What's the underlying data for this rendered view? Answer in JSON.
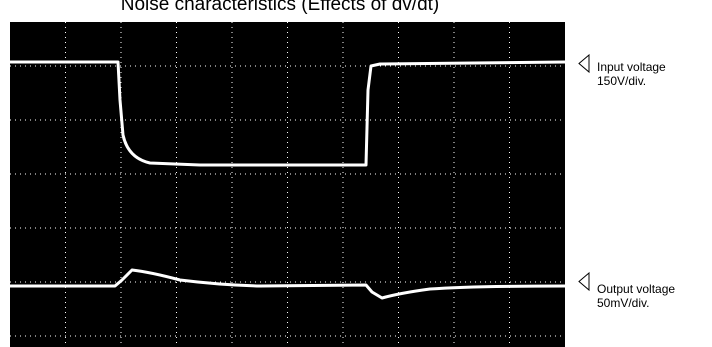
{
  "title": "Noise characteristics (Effects of dv/dt)",
  "channels": [
    {
      "label": "Input voltage",
      "scale": "150V/div."
    },
    {
      "label": "Output voltage",
      "scale": "50mV/div."
    }
  ]
}
